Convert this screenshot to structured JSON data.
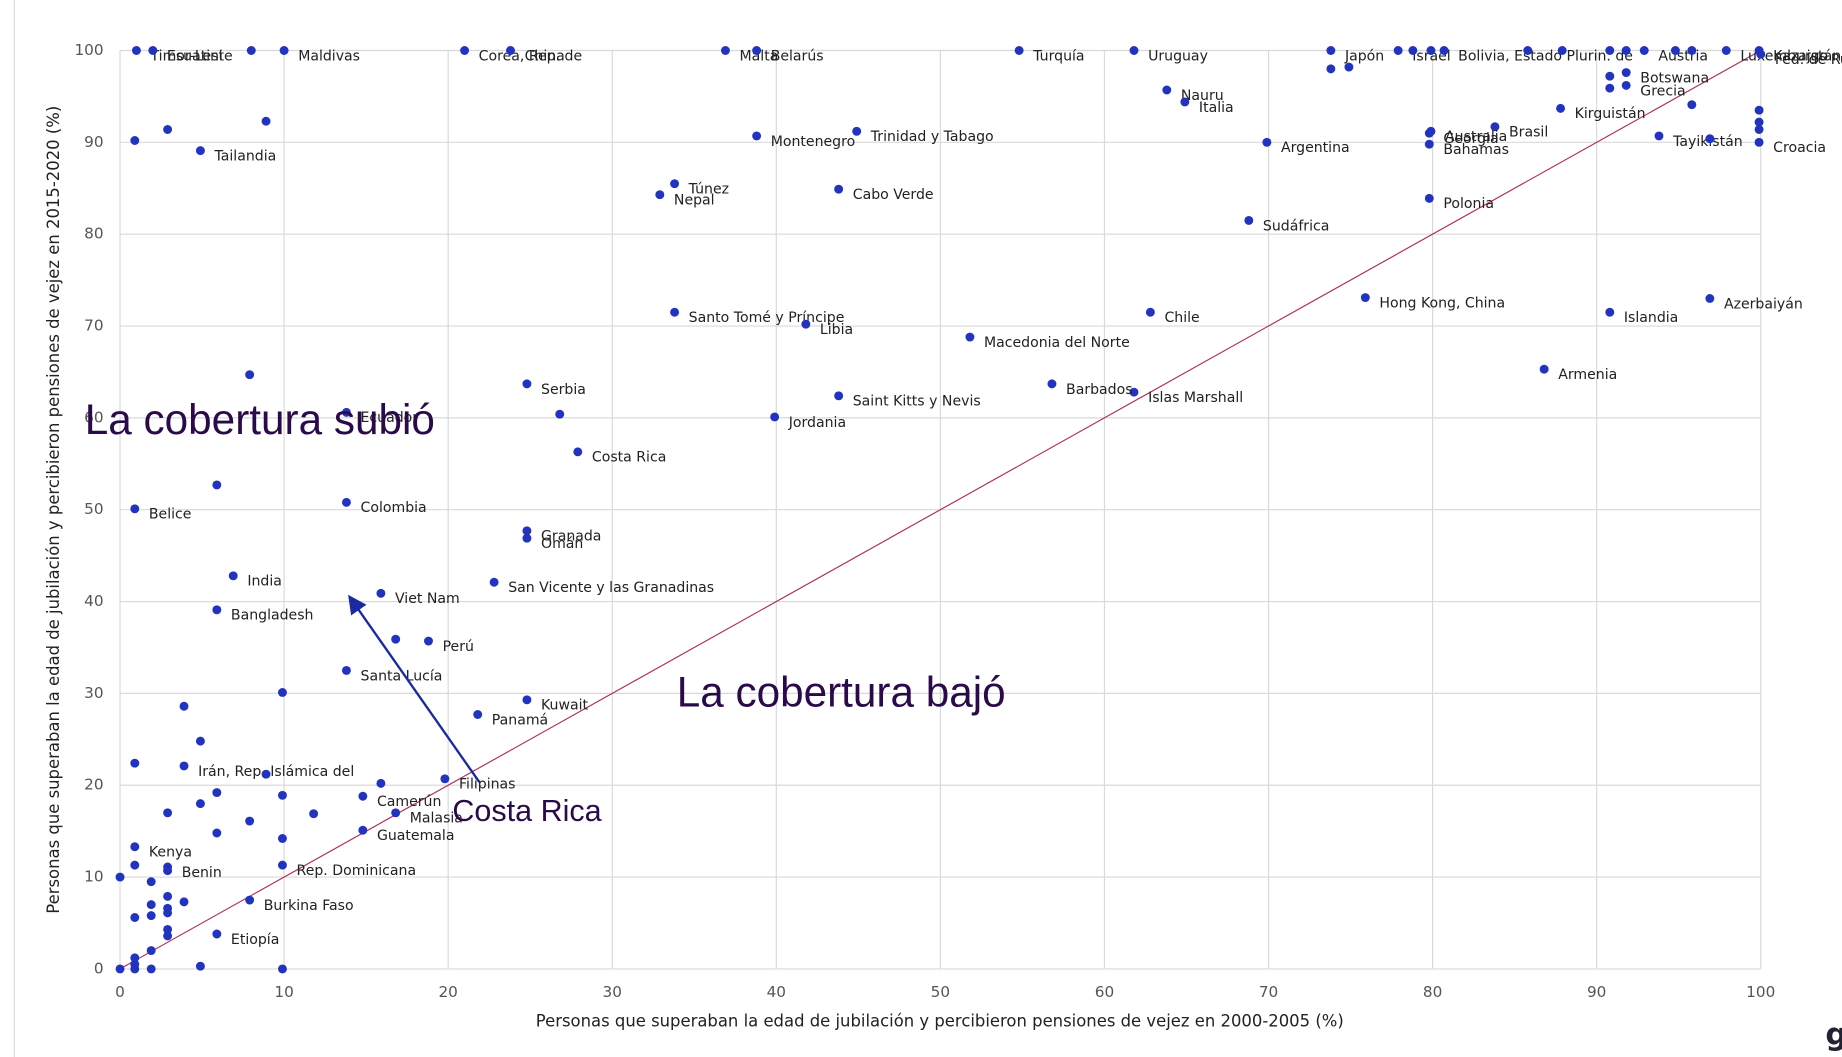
{
  "chart_data": {
    "type": "scatter",
    "xlabel": "Personas que superaban la edad de jubilación y percibieron pensiones de vejez en 2000-2005 (%)",
    "ylabel": "Personas que superaban la edad de jubilación y percibieron pensiones de vejez en 2015-2020 (%)",
    "annotations": [
      "La cobertura subió",
      "La cobertura bajó",
      "Costa Rica"
    ],
    "corner_text": "g",
    "xlim": [
      0,
      100
    ],
    "ylim": [
      0,
      100
    ],
    "xticks": [
      0,
      10,
      20,
      30,
      40,
      50,
      60,
      70,
      80,
      90,
      100
    ],
    "yticks": [
      0,
      10,
      20,
      30,
      40,
      50,
      60,
      70,
      80,
      90,
      100
    ],
    "grid": true,
    "reference_line_color": "#b03060",
    "series": [
      {
        "color": "#2233c0",
        "x": [
          1,
          2,
          8,
          10,
          21,
          23.8,
          36.9,
          38.8,
          54.8,
          61.8,
          73.8,
          73.8,
          74.9,
          77.9,
          78.8,
          79.9,
          80.7,
          85.8,
          87.9,
          90.8,
          91.8,
          92.9,
          94.8,
          95.8,
          97.9,
          99.9,
          100,
          91.8,
          90.8,
          91.8,
          90.8,
          63.8,
          64.9,
          87.8,
          83.8,
          79.8,
          79.9,
          79.8,
          93.8,
          95.8,
          96.9,
          99.9,
          99.9,
          99.9,
          99.9,
          69.9,
          38.8,
          44.9,
          4.9,
          8.9,
          2.9,
          0.9,
          33.8,
          32.9,
          43.8,
          68.8,
          79.8,
          33.8,
          41.8,
          62.8,
          75.9,
          90.8,
          96.9,
          51.8,
          86.8,
          61.8,
          56.8,
          43.8,
          39.9,
          24.8,
          27.9,
          26.8,
          13.8,
          7.9,
          5.9,
          0.9,
          13.8,
          24.8,
          24.8,
          6.9,
          5.9,
          22.8,
          15.9,
          16.8,
          18.8,
          13.8,
          21.8,
          24.8,
          9.9,
          3.9,
          3.9,
          0.9,
          4.9,
          8.9,
          19.8,
          15.9,
          14.8,
          16.8,
          14.8,
          11.8,
          5.9,
          9.9,
          4.9,
          2.9,
          7.9,
          5.9,
          9.9,
          9.9,
          0.9,
          2.9,
          0.9,
          2.9,
          0,
          1.9,
          7.9,
          5.9,
          1.9,
          2.9,
          3.9,
          2.9,
          2.9,
          0.9,
          1.9,
          2.9,
          2.9,
          1.9,
          0.9,
          0.9,
          0.9,
          1.9,
          0,
          4.9,
          9.9
        ],
        "values": [
          100,
          100,
          100,
          100,
          100,
          100,
          100,
          100,
          100,
          100,
          100,
          98,
          98.2,
          100,
          100,
          100,
          100,
          100,
          100,
          100,
          100,
          100,
          100,
          100,
          100,
          100,
          99.6,
          97.6,
          97.2,
          96.2,
          95.9,
          95.7,
          94.4,
          93.7,
          91.7,
          91,
          91.2,
          89.8,
          90.7,
          94.1,
          90.4,
          90,
          93.5,
          92.2,
          91.4,
          90,
          90.7,
          91.2,
          89.1,
          92.3,
          91.4,
          90.2,
          85.5,
          84.3,
          84.9,
          81.5,
          83.9,
          71.5,
          70.2,
          71.5,
          73.1,
          71.5,
          73,
          68.8,
          65.3,
          62.8,
          63.7,
          62.4,
          60.1,
          63.7,
          56.3,
          60.4,
          60.6,
          64.7,
          52.7,
          50.1,
          50.8,
          47.7,
          46.9,
          42.8,
          39.1,
          42.1,
          40.9,
          35.9,
          35.7,
          32.5,
          27.7,
          29.3,
          30.1,
          28.6,
          22.1,
          22.4,
          24.8,
          21.2,
          20.7,
          20.2,
          18.8,
          17,
          15.1,
          16.9,
          19.2,
          18.9,
          18,
          17,
          16.1,
          14.8,
          14.2,
          11.3,
          13.3,
          11.1,
          11.3,
          10.7,
          10,
          9.5,
          7.5,
          3.8,
          7,
          7.9,
          7.3,
          6.6,
          6.1,
          5.6,
          5.8,
          4.3,
          3.6,
          2,
          1.2,
          0.5,
          0,
          0,
          0,
          0.3,
          0
        ],
        "point_labels": [
          "Timor-Leste",
          "Esuatini",
          null,
          "Maldivas",
          "Corea, Rep. de",
          "China",
          "Malta",
          "Belarús",
          "Turquía",
          "Uruguay",
          "Japón",
          null,
          null,
          "Israel",
          null,
          null,
          "Bolivia, Estado Plurin. de",
          null,
          null,
          null,
          null,
          "Austria",
          null,
          null,
          "Luxemburgo",
          "Kazajstán",
          "Fed. de Rusia",
          "Botswana",
          null,
          "Grecia",
          null,
          "Nauru",
          "Italia",
          "Kirguistán",
          "Brasil",
          "Georgia",
          "Australia",
          "Bahamas",
          "Tayikistán",
          null,
          null,
          "Croacia",
          null,
          null,
          null,
          "Argentina",
          "Montenegro",
          "Trinidad y Tabago",
          "Tailandia",
          null,
          null,
          null,
          "Túnez",
          "Nepal",
          "Cabo Verde",
          "Sudáfrica",
          "Polonia",
          "Santo Tomé y Príncipe",
          "Libia",
          "Chile",
          "Hong Kong, China",
          "Islandia",
          "Azerbaiyán",
          "Macedonia del Norte",
          "Armenia",
          "Islas Marshall",
          "Barbados",
          "Saint Kitts y Nevis",
          "Jordania",
          "Serbia",
          "Costa Rica",
          null,
          "Ecuador",
          null,
          null,
          "Belice",
          "Colombia",
          "Granada",
          "Omán",
          "India",
          "Bangladesh",
          "San Vicente y las Granadinas",
          "Viet Nam",
          null,
          "Perú",
          "Santa Lucía",
          "Panamá",
          "Kuwait",
          null,
          null,
          "Irán, Rep. Islámica del",
          null,
          null,
          null,
          "Filipinas",
          null,
          "Camerún",
          "Malasia",
          "Guatemala",
          null,
          null,
          null,
          null,
          null,
          null,
          null,
          null,
          "Rep. Dominicana",
          "Kenya",
          "Benin",
          null,
          null,
          null,
          null,
          "Burkina Faso",
          "Etiopía",
          null,
          null,
          null,
          null,
          null,
          null,
          null,
          null,
          null,
          null,
          null,
          null,
          null,
          null,
          null,
          null,
          null
        ]
      }
    ]
  }
}
